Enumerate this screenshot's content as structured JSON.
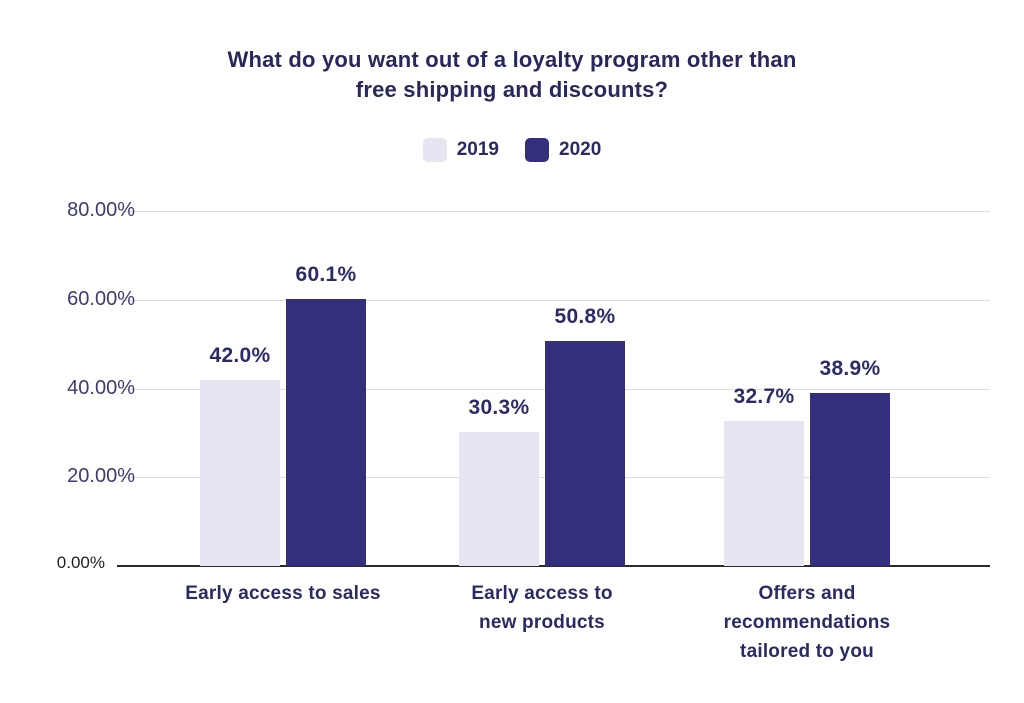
{
  "chart": {
    "title": "What do you want out of a loyalty program other than\nfree shipping and discounts?"
  },
  "colors": {
    "title_text": "#29275c",
    "label_text": "#2d2b66",
    "category_text": "#2b2a62",
    "legend_text": "#2b2a62",
    "tick_text": "#3e3b70",
    "tick_zero_text": "#1f1f1f",
    "gridline": "#dcdcdc",
    "axis_line": "#2b2b2b",
    "background": "#ffffff",
    "series_2019": "#e8e5f3",
    "series_2020": "#332f7d"
  },
  "chart_data": {
    "type": "bar",
    "title": "What do you want out of a loyalty program other than free shipping and discounts?",
    "categories": [
      "Early access to sales",
      "Early access to\nnew products",
      "Offers and\nrecommendations\ntailored to you"
    ],
    "series": [
      {
        "name": "2019",
        "color": "#e8e5f3",
        "values": [
          42.0,
          30.3,
          32.7
        ],
        "labels": [
          "42.0%",
          "30.3%",
          "32.7%"
        ]
      },
      {
        "name": "2020",
        "color": "#332f7d",
        "values": [
          60.1,
          50.8,
          38.9
        ],
        "labels": [
          "60.1%",
          "50.8%",
          "38.9%"
        ]
      }
    ],
    "xlabel": "",
    "ylabel": "",
    "ylim": [
      0,
      80
    ],
    "yticks": [
      {
        "value": 0,
        "label": "0.00%"
      },
      {
        "value": 20,
        "label": "20.00%"
      },
      {
        "value": 40,
        "label": "40.00%"
      },
      {
        "value": 60,
        "label": "60.00%"
      },
      {
        "value": 80,
        "label": "80.00%"
      }
    ],
    "grid": true,
    "legend_position": "top-center"
  }
}
